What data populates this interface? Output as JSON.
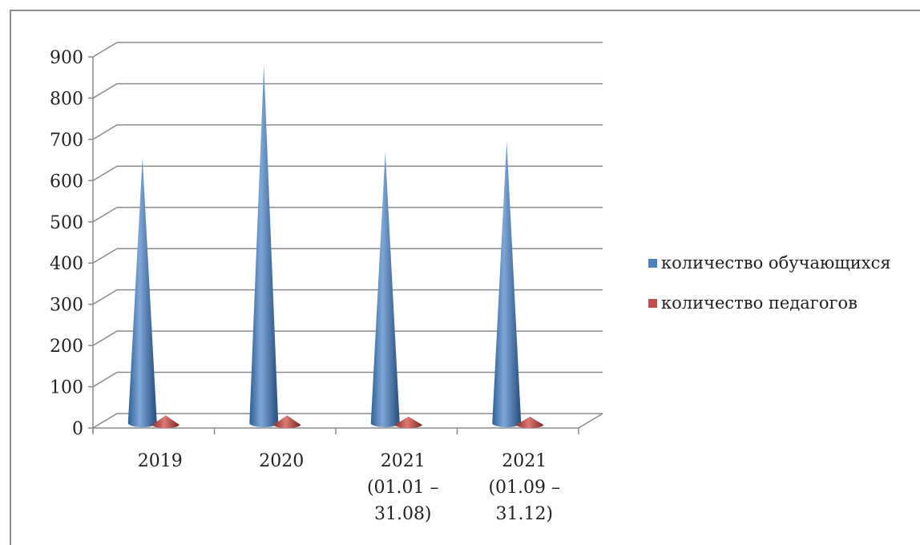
{
  "colors": {
    "series_1": "#4f81bd",
    "series_2": "#c0504d",
    "grid": "#8a8a8a",
    "text": "#222222"
  },
  "chart_data": {
    "type": "bar",
    "style": "3d-cone",
    "title": "",
    "xlabel": "",
    "ylabel": "",
    "ylim": [
      0,
      900
    ],
    "yticks": [
      0,
      100,
      200,
      300,
      400,
      500,
      600,
      700,
      800,
      900
    ],
    "grid": true,
    "legend_position": "right",
    "categories": [
      [
        "2019"
      ],
      [
        "2020"
      ],
      [
        "2021",
        "(01.01 –",
        "31.08)"
      ],
      [
        "2021",
        "(01.09 –",
        "31.12)"
      ]
    ],
    "series": [
      {
        "name": "количество обучающихся",
        "values": [
          655,
          880,
          670,
          695
        ]
      },
      {
        "name": "количество педагогов",
        "values": [
          15,
          15,
          12,
          12
        ]
      }
    ]
  }
}
